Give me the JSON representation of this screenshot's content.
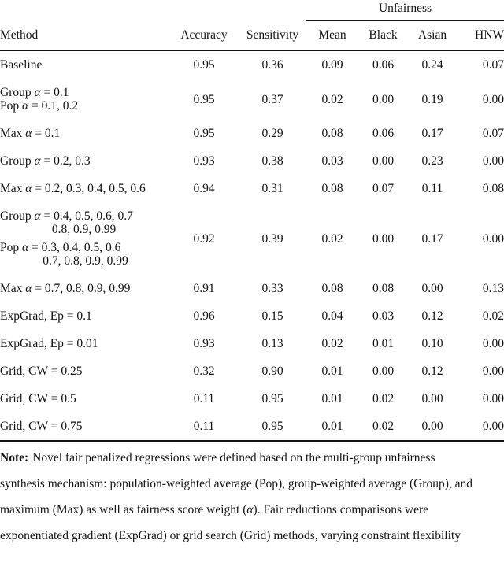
{
  "table": {
    "group_header": "Unfairness",
    "columns": [
      "Method",
      "Accuracy",
      "Sensitivity",
      "Mean",
      "Black",
      "Asian",
      "HNW"
    ],
    "rows": [
      {
        "method": [
          [
            "Baseline"
          ]
        ],
        "values": [
          "0.95",
          "0.36",
          "0.09",
          "0.06",
          "0.24",
          "0.07"
        ]
      },
      {
        "method": [
          [
            "Group α = 0.1",
            "Pop α = 0.1, 0.2"
          ]
        ],
        "values": [
          "0.95",
          "0.37",
          "0.02",
          "0.00",
          "0.19",
          "0.00"
        ]
      },
      {
        "method": [
          [
            "Max α = 0.1"
          ]
        ],
        "values": [
          "0.95",
          "0.29",
          "0.08",
          "0.06",
          "0.17",
          "0.07"
        ]
      },
      {
        "method": [
          [
            "Group α = 0.2, 0.3"
          ]
        ],
        "values": [
          "0.93",
          "0.38",
          "0.03",
          "0.00",
          "0.23",
          "0.00"
        ]
      },
      {
        "method": [
          [
            "Max α = 0.2, 0.3, 0.4, 0.5, 0.6"
          ]
        ],
        "values": [
          "0.94",
          "0.31",
          "0.08",
          "0.07",
          "0.11",
          "0.08"
        ]
      },
      {
        "method": [
          [
            "Group α = 0.4, 0.5, 0.6, 0.7",
            "                 0.8, 0.9, 0.99"
          ],
          [
            "Pop α = 0.3, 0.4, 0.5, 0.6",
            "              0.7, 0.8, 0.9, 0.99"
          ]
        ],
        "values": [
          "0.92",
          "0.39",
          "0.02",
          "0.00",
          "0.17",
          "0.00"
        ]
      },
      {
        "method": [
          [
            "Max α = 0.7, 0.8, 0.9, 0.99"
          ]
        ],
        "values": [
          "0.91",
          "0.33",
          "0.08",
          "0.08",
          "0.00",
          "0.13"
        ]
      },
      {
        "method": [
          [
            "ExpGrad, Ep = 0.1"
          ]
        ],
        "values": [
          "0.96",
          "0.15",
          "0.04",
          "0.03",
          "0.12",
          "0.02"
        ]
      },
      {
        "method": [
          [
            "ExpGrad, Ep = 0.01"
          ]
        ],
        "values": [
          "0.93",
          "0.13",
          "0.02",
          "0.01",
          "0.10",
          "0.00"
        ]
      },
      {
        "method": [
          [
            "Grid, CW = 0.25"
          ]
        ],
        "values": [
          "0.32",
          "0.90",
          "0.01",
          "0.00",
          "0.12",
          "0.00"
        ]
      },
      {
        "method": [
          [
            "Grid, CW = 0.5"
          ]
        ],
        "values": [
          "0.11",
          "0.95",
          "0.01",
          "0.02",
          "0.00",
          "0.00"
        ]
      },
      {
        "method": [
          [
            "Grid, CW = 0.75"
          ]
        ],
        "values": [
          "0.11",
          "0.95",
          "0.01",
          "0.02",
          "0.00",
          "0.00"
        ]
      }
    ]
  },
  "note": {
    "label": "Note:",
    "lines": [
      "Novel fair penalized regressions were defined based on the multi-group unfairness",
      "synthesis mechanism: population-weighted average (Pop), group-weighted average (Group), and",
      "maximum (Max) as well as fairness score weight (α). Fair reductions comparisons were",
      "exponentiated gradient (ExpGrad) or grid search (Grid) methods, varying constraint flexibility"
    ]
  }
}
